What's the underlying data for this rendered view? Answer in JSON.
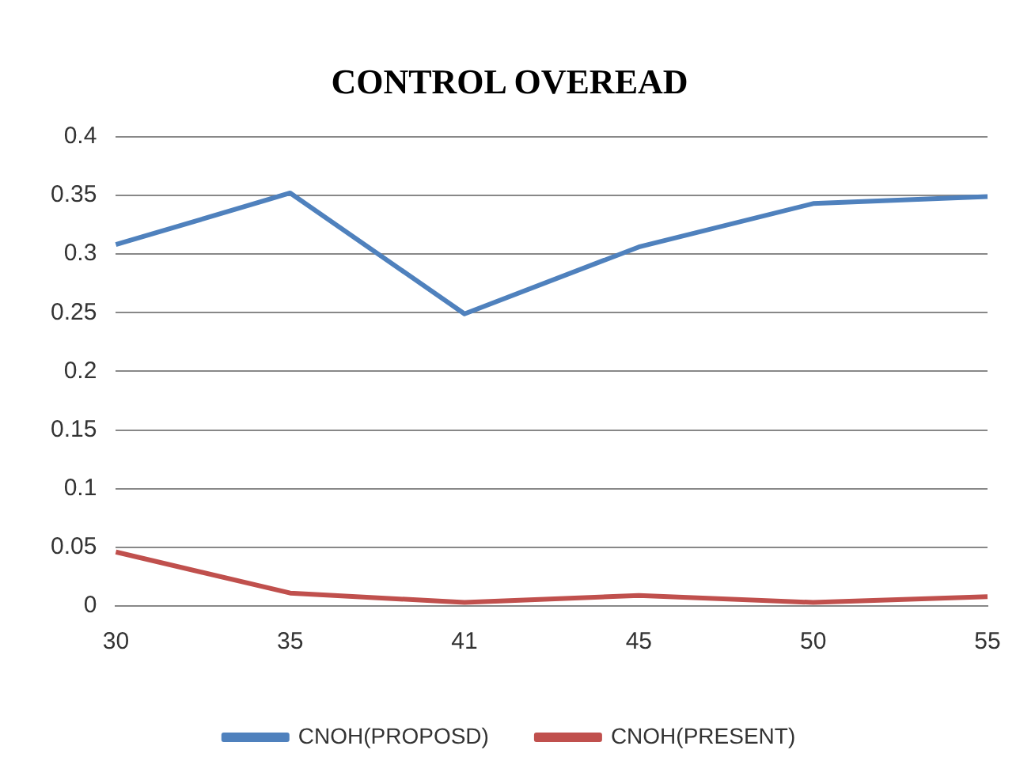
{
  "chart_data": {
    "type": "line",
    "title": "CONTROL OVEREAD",
    "categories": [
      "30",
      "35",
      "41",
      "45",
      "50",
      "55"
    ],
    "series": [
      {
        "name": "CNOH(PROPOSD)",
        "color": "#4f81bd",
        "values": [
          0.308,
          0.352,
          0.249,
          0.306,
          0.343,
          0.349
        ]
      },
      {
        "name": "CNOH(PRESENT)",
        "color": "#c0504d",
        "values": [
          0.046,
          0.011,
          0.003,
          0.009,
          0.003,
          0.008
        ]
      }
    ],
    "ylim": [
      0,
      0.4
    ],
    "yticks": [
      {
        "value": 0,
        "label": "0"
      },
      {
        "value": 0.05,
        "label": "0.05"
      },
      {
        "value": 0.1,
        "label": "0.1"
      },
      {
        "value": 0.15,
        "label": "0.15"
      },
      {
        "value": 0.2,
        "label": "0.2"
      },
      {
        "value": 0.25,
        "label": "0.25"
      },
      {
        "value": 0.3,
        "label": "0.3"
      },
      {
        "value": 0.35,
        "label": "0.35"
      },
      {
        "value": 0.4,
        "label": "0.4"
      }
    ],
    "grid": "y",
    "legend": "bottom",
    "marker": "none",
    "line_style": "solid"
  }
}
